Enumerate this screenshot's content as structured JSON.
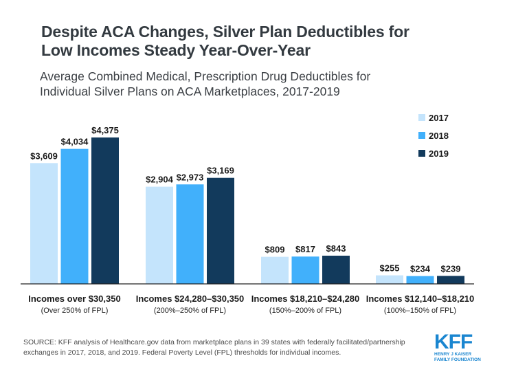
{
  "header": {
    "title_line1": "Despite ACA Changes, Silver Plan Deductibles for",
    "title_line2": "Low Incomes Steady Year-Over-Year",
    "subtitle_line1": "Average Combined Medical, Prescription Drug Deductibles for",
    "subtitle_line2": "Individual Silver Plans on ACA Marketplaces, 2017-2019"
  },
  "colors": {
    "accent": "#0b7ac7",
    "s2017": "#c4e4fc",
    "s2018": "#41b0fb",
    "s2019": "#123a5c",
    "axis": "#222222",
    "label": "#1a1a1a",
    "logo": "#1a86d0"
  },
  "chart_data": {
    "type": "bar",
    "title": "Average Combined Medical, Prescription Drug Deductibles for Individual Silver Plans on ACA Marketplaces, 2017-2019",
    "xlabel": "",
    "ylabel": "",
    "ylim": [
      0,
      4500
    ],
    "grid": false,
    "legend_position": "top-right",
    "categories": [
      "Incomes over $30,350",
      "Incomes $24,280–$30,350",
      "Incomes $18,210–$24,280",
      "Incomes $12,140–$18,210"
    ],
    "category_sublabels": [
      "(Over 250% of FPL)",
      "(200%–250% of FPL)",
      "(150%–200% of FPL)",
      "(100%–150% of FPL)"
    ],
    "series": [
      {
        "name": "2017",
        "values": [
          3609,
          2904,
          809,
          255
        ],
        "labels": [
          "$3,609",
          "$2,904",
          "$809",
          "$255"
        ]
      },
      {
        "name": "2018",
        "values": [
          4034,
          2973,
          817,
          234
        ],
        "labels": [
          "$4,034",
          "$2,973",
          "$817",
          "$234"
        ]
      },
      {
        "name": "2019",
        "values": [
          4375,
          3169,
          843,
          239
        ],
        "labels": [
          "$4,375",
          "$3,169",
          "$843",
          "$239"
        ]
      }
    ]
  },
  "legend": {
    "items": [
      "2017",
      "2018",
      "2019"
    ]
  },
  "footer": {
    "source_line1": "SOURCE: KFF analysis of Healthcare.gov data from marketplace plans in 39 states with federally facilitated/partnership",
    "source_line2": "exchanges in 2017, 2018, and 2019. Federal Poverty Level (FPL) thresholds for individual incomes."
  },
  "logo": {
    "mark": "KFF",
    "line1": "HENRY J KAISER",
    "line2": "FAMILY FOUNDATION"
  }
}
